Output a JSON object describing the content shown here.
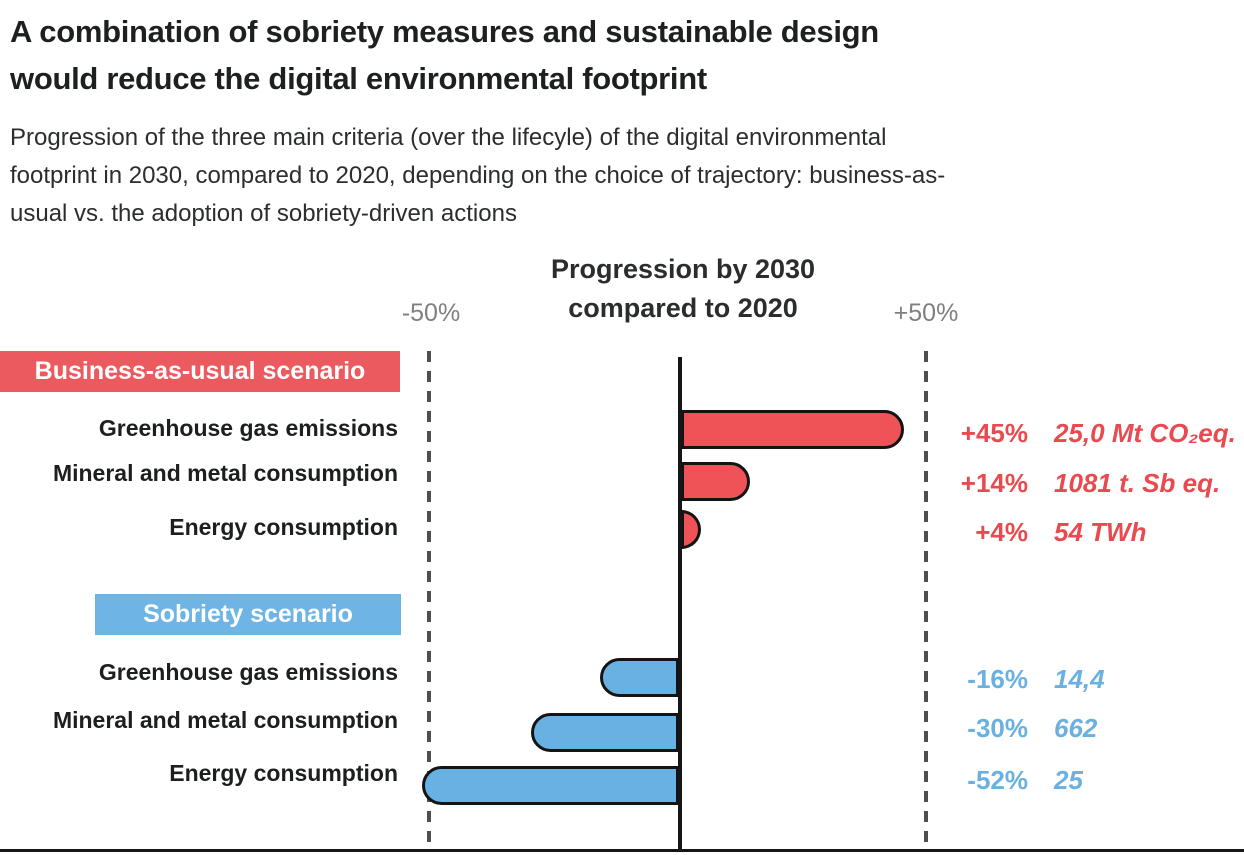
{
  "header": {
    "title_lines": [
      "A combination of sobriety measures and sustainable design",
      "would reduce the digital environmental footprint"
    ],
    "subtitle_lines": [
      "Progression of the three main criteria (over the lifecyle) of the digital environmental",
      "footprint in 2030, compared to 2020, depending on the choice of trajectory: business-as-",
      "usual vs. the adoption of sobriety-driven actions"
    ]
  },
  "chart_data": {
    "type": "bar",
    "orientation": "horizontal",
    "title": "Progression by 2030 compared to 2020",
    "title_lines": [
      "Progression by 2030",
      "compared to 2020"
    ],
    "axis": {
      "xlim": [
        -50,
        50
      ],
      "unit": "%",
      "tick_labels": {
        "min": "-50%",
        "max": "+50%"
      },
      "zero_line": true,
      "gridline_style": "dashed"
    },
    "colors": {
      "bau_badge": "#eb5a5f",
      "bau_bar": "#ef5257",
      "bau_text": "#e84a50",
      "sobriety_badge": "#6eb5e5",
      "sobriety_bar": "#68b2e3",
      "sobriety_text": "#6ab1e1",
      "outline": "#141414"
    },
    "groups": [
      {
        "name": "Business-as-usual scenario",
        "rows": [
          {
            "label": "Greenhouse gas emissions",
            "value_pct": 45,
            "pct_label": "+45%",
            "value_label": "25,0 Mt CO₂eq."
          },
          {
            "label": "Mineral and metal consumption",
            "value_pct": 14,
            "pct_label": "+14%",
            "value_label": "1081 t. Sb eq."
          },
          {
            "label": "Energy consumption",
            "value_pct": 4,
            "pct_label": "+4%",
            "value_label": "54 TWh"
          }
        ]
      },
      {
        "name": "Sobriety scenario",
        "rows": [
          {
            "label": "Greenhouse gas emissions",
            "value_pct": -16,
            "pct_label": "-16%",
            "value_label": "14,4"
          },
          {
            "label": "Mineral and metal consumption",
            "value_pct": -30,
            "pct_label": "-30%",
            "value_label": "662"
          },
          {
            "label": "Energy consumption",
            "value_pct": -52,
            "pct_label": "-52%",
            "value_label": "25"
          }
        ]
      }
    ]
  }
}
